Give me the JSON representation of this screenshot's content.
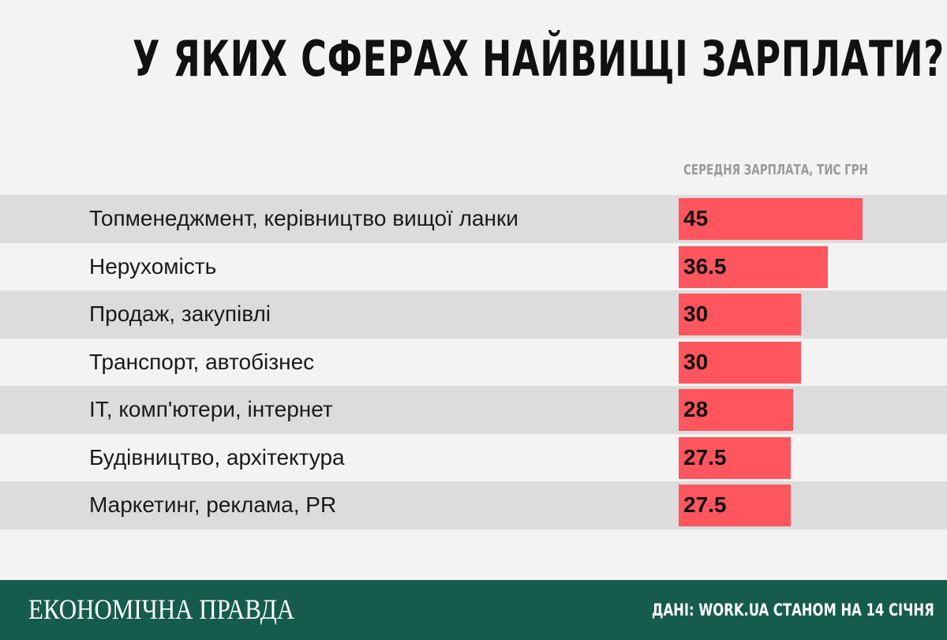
{
  "header": {
    "title": "У ЯКИХ СФЕРАХ НАЙВИЩІ ЗАРПЛАТИ?"
  },
  "chart_data": {
    "type": "bar",
    "orientation": "horizontal",
    "title": "У ЯКИХ СФЕРАХ НАЙВИЩІ ЗАРПЛАТИ?",
    "value_label": "СЕРЕДНЯ ЗАРПЛАТА, ТИС ГРН",
    "categories": [
      "Топменеджмент, керівництво вищої ланки",
      "Нерухомість",
      "Продаж, закупівлі",
      "Транспорт, автобізнес",
      "IT, комп'ютери, інтернет",
      "Будівництво, архітектура",
      "Маркетинг, реклама, PR"
    ],
    "values": [
      45,
      36.5,
      30,
      30,
      28,
      27.5,
      27.5
    ],
    "value_labels": [
      "45",
      "36.5",
      "30",
      "30",
      "28",
      "27.5",
      "27.5"
    ],
    "bar_color": "#ff555e",
    "row_shade_color": "#dcdcdc",
    "grid": false
  },
  "footer": {
    "brand": "ЕКОНОМІЧНА ПРАВДА",
    "source": "ДАНІ: WORK.UA СТАНОМ НА 14 СІЧНЯ",
    "background_color": "#165c4d"
  }
}
